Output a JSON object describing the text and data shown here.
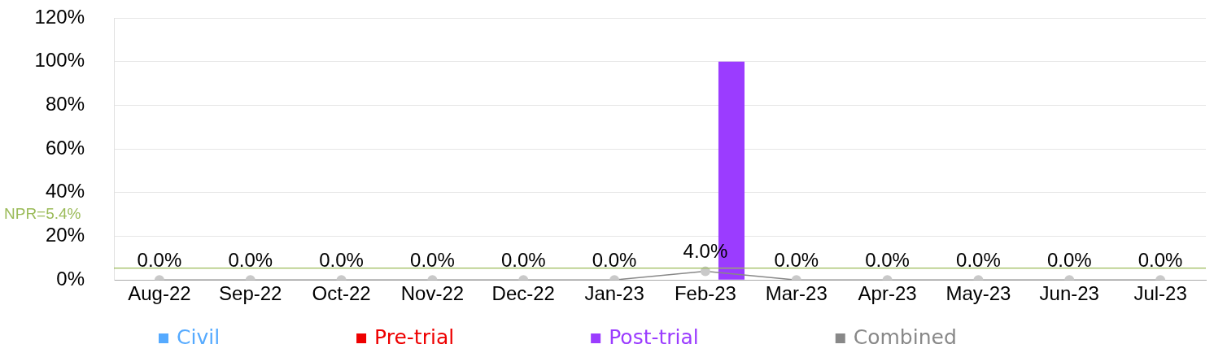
{
  "chart_data": {
    "type": "bar",
    "categories": [
      "Aug-22",
      "Sep-22",
      "Oct-22",
      "Nov-22",
      "Dec-22",
      "Jan-23",
      "Feb-23",
      "Mar-23",
      "Apr-23",
      "May-23",
      "Jun-23",
      "Jul-23"
    ],
    "series": [
      {
        "name": "Civil",
        "color": "#55aaff",
        "values": [
          0,
          0,
          0,
          0,
          0,
          0,
          0,
          0,
          0,
          0,
          0,
          0
        ]
      },
      {
        "name": "Pre-trial",
        "color": "#ee0000",
        "values": [
          0,
          0,
          0,
          0,
          0,
          0,
          0,
          0,
          0,
          0,
          0,
          0
        ]
      },
      {
        "name": "Post-trial",
        "color": "#9b3cff",
        "values": [
          0,
          0,
          0,
          0,
          0,
          0,
          100,
          0,
          0,
          0,
          0,
          0
        ]
      },
      {
        "name": "Combined",
        "type": "line",
        "color": "#888888",
        "values": [
          0,
          0,
          0,
          0,
          0,
          0,
          4.0,
          0,
          0,
          0,
          0,
          0
        ],
        "value_labels": [
          "0.0%",
          "0.0%",
          "0.0%",
          "0.0%",
          "0.0%",
          "0.0%",
          "4.0%",
          "0.0%",
          "0.0%",
          "0.0%",
          "0.0%",
          "0.0%"
        ]
      }
    ],
    "ylim": [
      0,
      120
    ],
    "yticks": [
      {
        "value": 0,
        "label": "0%"
      },
      {
        "value": 20,
        "label": "20%"
      },
      {
        "value": 40,
        "label": "40%"
      },
      {
        "value": 60,
        "label": "60%"
      },
      {
        "value": 80,
        "label": "80%"
      },
      {
        "value": 100,
        "label": "100%"
      },
      {
        "value": 120,
        "label": "120%"
      }
    ],
    "grid": "y",
    "legend": "bottom",
    "marker": "circle",
    "line_style": "solid",
    "ref_lines": [
      {
        "axis": "y",
        "value": 5.4,
        "label": "NPR=5.4%",
        "color": "#9bbb59"
      }
    ]
  }
}
